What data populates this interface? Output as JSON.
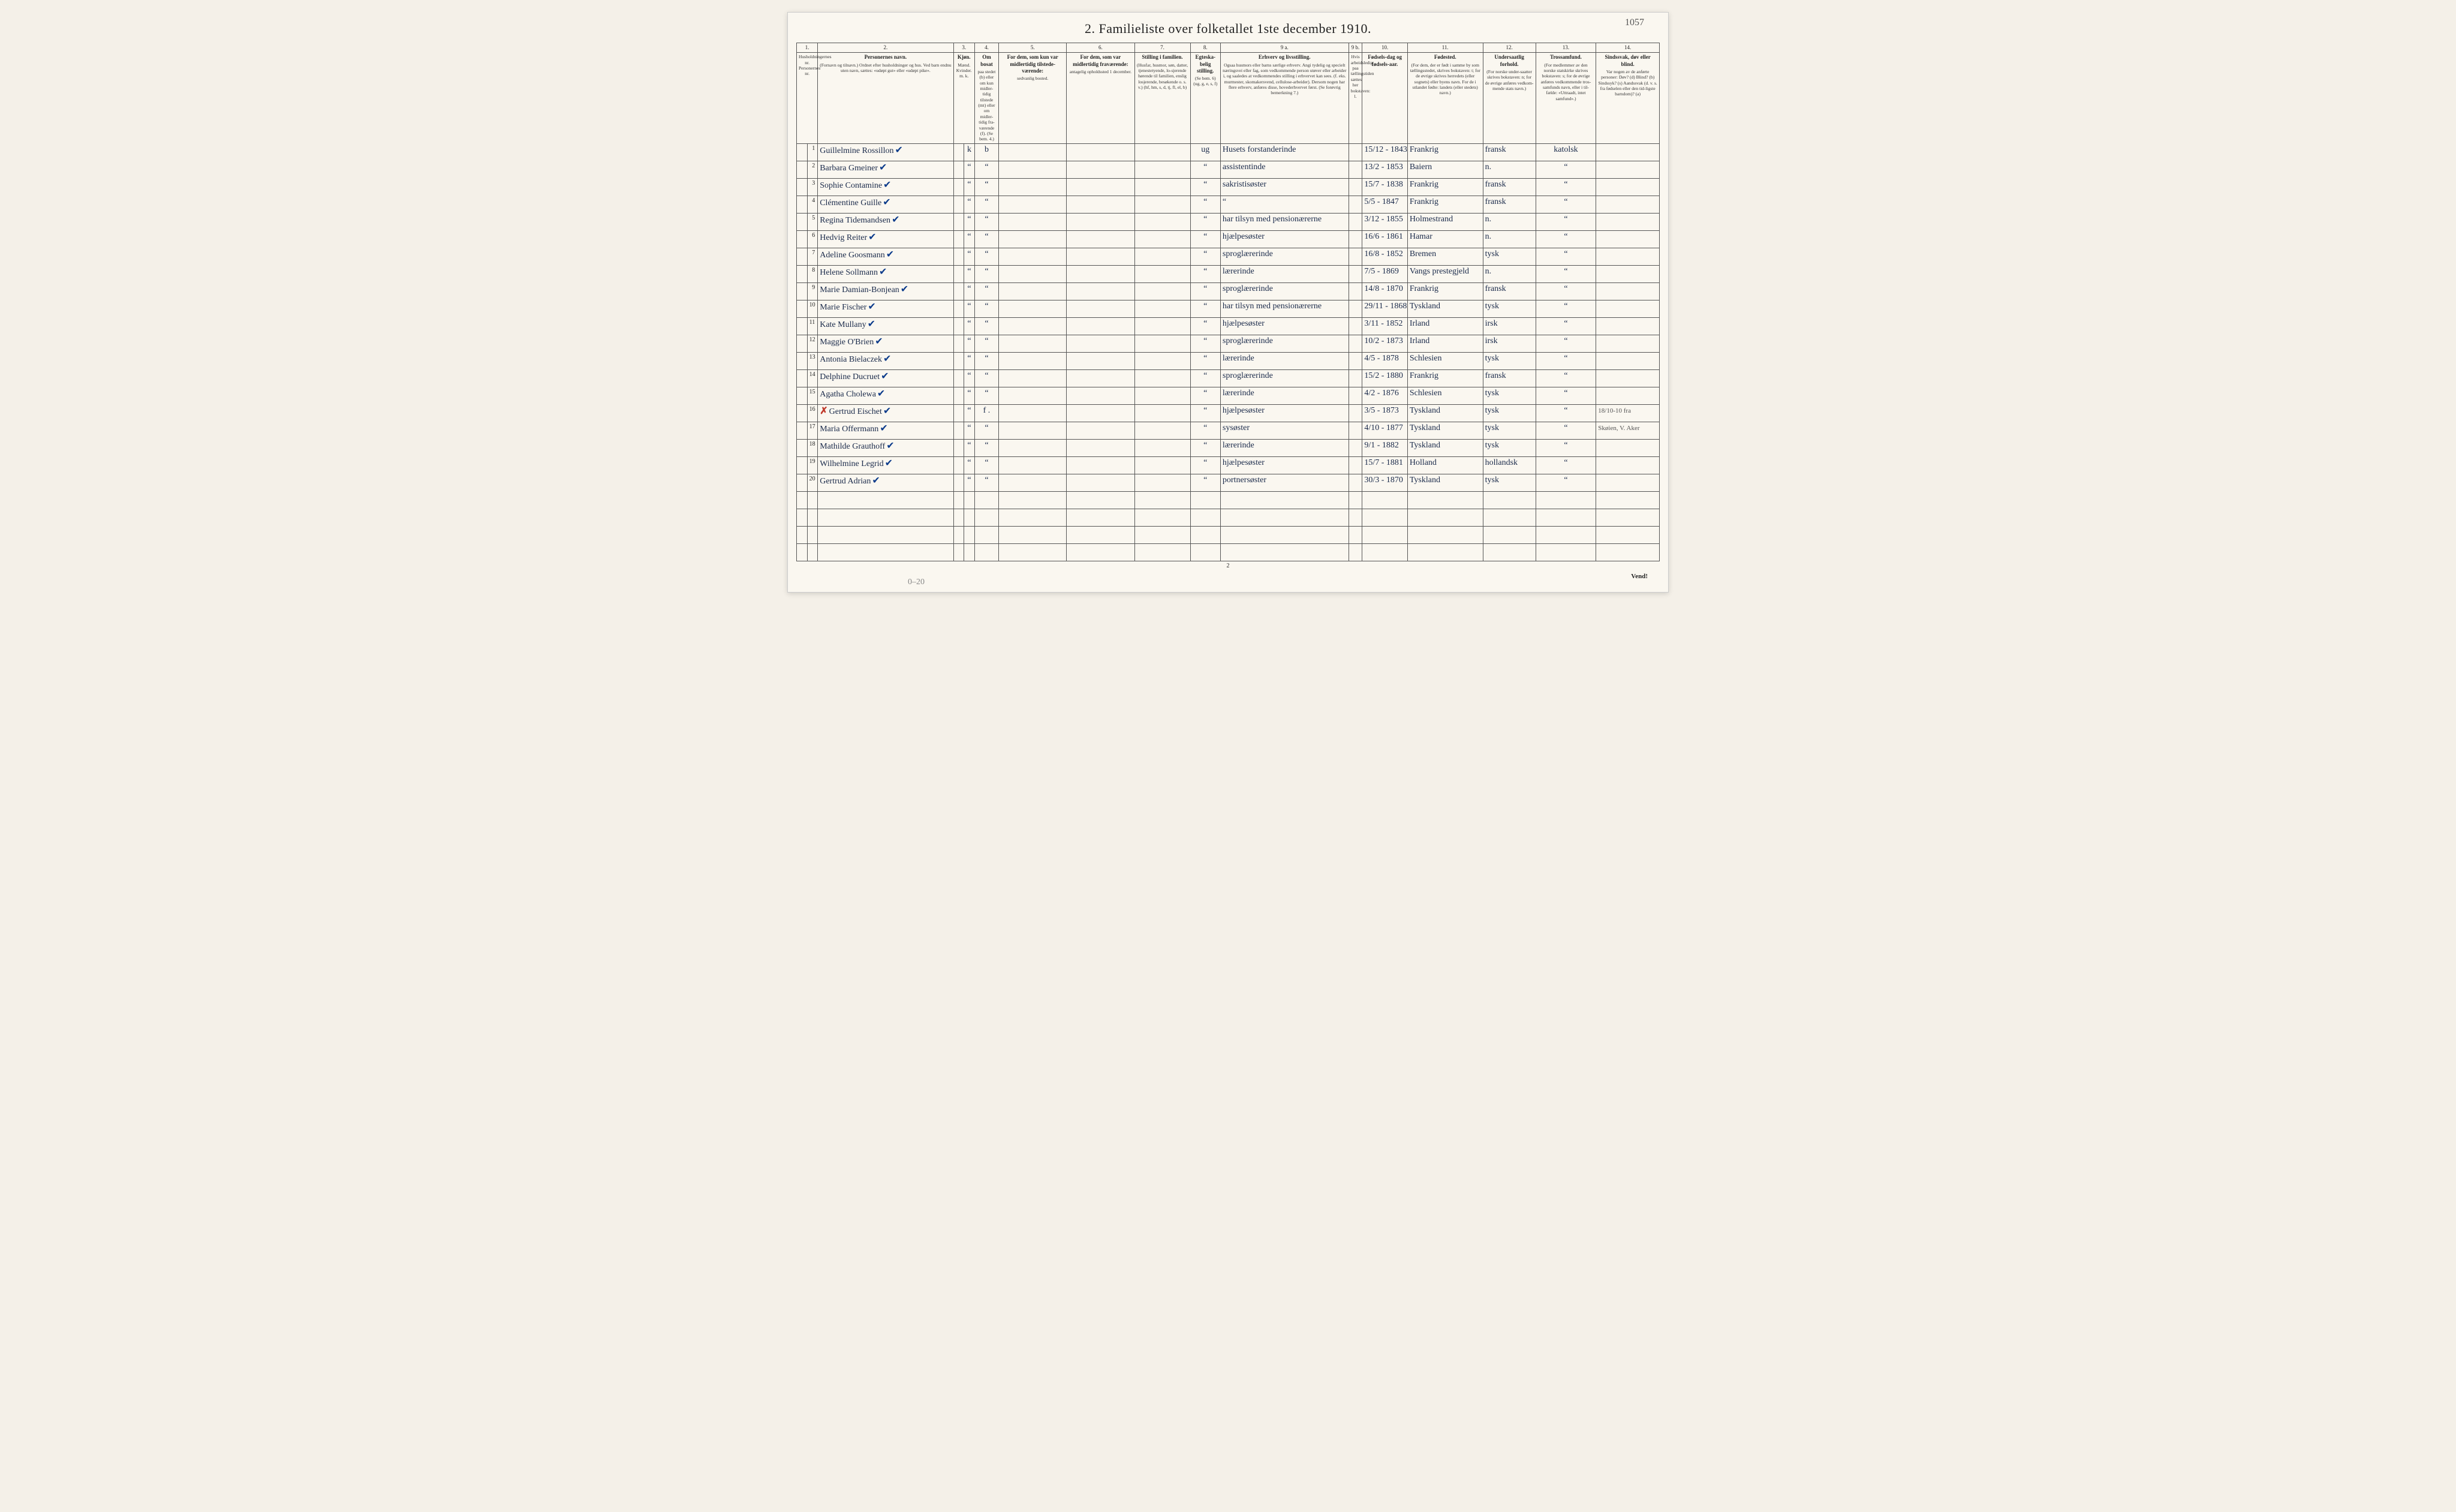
{
  "page_number_handwritten": "1057",
  "title": "2.  Familieliste over folketallet 1ste december 1910.",
  "footer_turn": "Vend!",
  "footer_page": "2",
  "pencil_note": "0–20",
  "columns": {
    "c1": {
      "num": "1.",
      "sub": "Husholdningernes nr.\nPersonernes nr."
    },
    "c2": {
      "num": "2.",
      "title": "Personernes navn.",
      "sub": "(Fornavn og tilnavn.)\nOrdnet efter husholdninger og hus.\nVed barn endnu uten navn, sættes: «udøpt gut» eller «udøpt pike»."
    },
    "c3": {
      "num": "3.",
      "title": "Kjøn.",
      "sub_m": "Mænd.",
      "sub_k": "Kvinder.",
      "mk": "m.  k."
    },
    "c4": {
      "num": "4.",
      "title": "Om bosat",
      "sub": "paa stedet (b) eller om kun midler-tidig tilstede (mt) eller om midler-tidig fra-værende (f). (Se bem. 4.)"
    },
    "c5": {
      "num": "5.",
      "title": "For dem, som kun var midlertidig tilstede-værende:",
      "sub": "sedvanlig bosted."
    },
    "c6": {
      "num": "6.",
      "title": "For dem, som var midlertidig fraværende:",
      "sub": "antagelig opholdssted 1 december."
    },
    "c7": {
      "num": "7.",
      "title": "Stilling i familien.",
      "sub": "(Husfar, husmor, søn, datter, tjenestetyende, lo-sjerende hørende til familien, enslig losjerende, besøkende o. s. v.)\n(hf, hm, s, d, tj, fl, el, b)"
    },
    "c8": {
      "num": "8.",
      "title": "Egteska-belig stilling.",
      "sub": "(Se bem. 6)\n(ug, g, e, s, f)"
    },
    "c9a": {
      "num": "9 a.",
      "title": "Erhverv og livsstilling.",
      "sub": "Ogsaa husmors eller barns særlige erhverv. Angi tydelig og specielt næringsvei eller fag, som vedkommende person utøver eller arbeider i, og saaledes at vedkommendes stilling i erhvervet kan sees. (f. eks. murmester, skomakersvend, cellulose-arbeider). Dersom nogen har flere erhverv, anføres disse, hovederhvervet først.\n(Se forøvrig bemerkning 7.)"
    },
    "c9b": {
      "num": "9 b.",
      "sub": "Hvis arbeidsledig paa tællingstiden sættes her bokstaven: l."
    },
    "c10": {
      "num": "10.",
      "title": "Fødsels-dag og fødsels-aar."
    },
    "c11": {
      "num": "11.",
      "title": "Fødested.",
      "sub": "(For dem, der er født i samme by som tællingsstedet, skrives bokstaven: t; for de øvrige skrives herredets (eller sognets) eller byens navn. For de i utlandet fødte: landets (eller stedets) navn.)"
    },
    "c12": {
      "num": "12.",
      "title": "Undersaatlig forhold.",
      "sub": "(For norske under-saatter skrives bokstaven: n; for de øvrige anføres vedkom-mende stats navn.)"
    },
    "c13": {
      "num": "13.",
      "title": "Trossamfund.",
      "sub": "(For medlemmer av den norske statskirke skrives bokstaven: s; for de øvrige anføres vedkommende tros-samfunds navn, eller i til-fælde: «Uttraadt, intet samfund».)"
    },
    "c14": {
      "num": "14.",
      "title": "Sindssvak, døv eller blind.",
      "sub": "Var nogen av de anførte personer:\nDøv? (d)\nBlind? (b)\nSindssyk? (s)\nAandssvak (d. v. s. fra fødselen eller den tid-ligste barndom)? (a)"
    }
  },
  "rows": [
    {
      "n": "1",
      "name": "Guillelmine Rossillon",
      "tick": true,
      "mk": "k",
      "bosat": "b",
      "c8": "ug",
      "c9a": "Husets forstanderinde",
      "c10": "15/12 - 1843",
      "c11": "Frankrig",
      "c12": "fransk",
      "c13": "katolsk",
      "c14": ""
    },
    {
      "n": "2",
      "name": "Barbara Gmeiner",
      "tick": true,
      "mk": "“",
      "bosat": "“",
      "c8": "“",
      "c9a": "assistentinde",
      "c10": "13/2 - 1853",
      "c11": "Baiern",
      "c12": "n.",
      "c13": "“",
      "c14": ""
    },
    {
      "n": "3",
      "name": "Sophie Contamine",
      "tick": true,
      "mk": "“",
      "bosat": "“",
      "c8": "“",
      "c9a": "sakristisøster",
      "c10": "15/7 - 1838",
      "c11": "Frankrig",
      "c12": "fransk",
      "c13": "“",
      "c14": ""
    },
    {
      "n": "4",
      "name": "Clémentine Guille",
      "tick": true,
      "mk": "“",
      "bosat": "“",
      "c8": "“",
      "c9a": "“",
      "c10": "5/5 - 1847",
      "c11": "Frankrig",
      "c12": "fransk",
      "c13": "“",
      "c14": ""
    },
    {
      "n": "5",
      "name": "Regina Tidemandsen",
      "tick": true,
      "mk": "“",
      "bosat": "“",
      "c8": "“",
      "c9a": "har tilsyn med pensionærerne",
      "c10": "3/12 - 1855",
      "c11": "Holmestrand",
      "c12": "n.",
      "c13": "“",
      "c14": ""
    },
    {
      "n": "6",
      "name": "Hedvig Reiter",
      "tick": true,
      "mk": "“",
      "bosat": "“",
      "c8": "“",
      "c9a": "hjælpesøster",
      "c10": "16/6 - 1861",
      "c11": "Hamar",
      "c12": "n.",
      "c13": "“",
      "c14": ""
    },
    {
      "n": "7",
      "name": "Adeline Goosmann",
      "tick": true,
      "mk": "“",
      "bosat": "“",
      "c8": "“",
      "c9a": "sproglærerinde",
      "c10": "16/8 - 1852",
      "c11": "Bremen",
      "c12": "tysk",
      "c13": "“",
      "c14": ""
    },
    {
      "n": "8",
      "name": "Helene Sollmann",
      "tick": true,
      "mk": "“",
      "bosat": "“",
      "c8": "“",
      "c9a": "lærerinde",
      "c10": "7/5 - 1869",
      "c11": "Vangs prestegjeld",
      "c12": "n.",
      "c13": "“",
      "c14": ""
    },
    {
      "n": "9",
      "name": "Marie Damian-Bonjean",
      "tick": true,
      "mk": "“",
      "bosat": "“",
      "c8": "“",
      "c9a": "sproglærerinde",
      "c10": "14/8 - 1870",
      "c11": "Frankrig",
      "c12": "fransk",
      "c13": "“",
      "c14": ""
    },
    {
      "n": "10",
      "name": "Marie Fischer",
      "tick": true,
      "mk": "“",
      "bosat": "“",
      "c8": "“",
      "c9a": "har tilsyn med pensionærerne",
      "c10": "29/11 - 1868",
      "c11": "Tyskland",
      "c12": "tysk",
      "c13": "“",
      "c14": ""
    },
    {
      "n": "11",
      "name": "Kate Mullany",
      "tick": true,
      "mk": "“",
      "bosat": "“",
      "c8": "“",
      "c9a": "hjælpesøster",
      "c10": "3/11 - 1852",
      "c11": "Irland",
      "c12": "irsk",
      "c13": "“",
      "c14": ""
    },
    {
      "n": "12",
      "name": "Maggie O'Brien",
      "tick": true,
      "mk": "“",
      "bosat": "“",
      "c8": "“",
      "c9a": "sproglærerinde",
      "c10": "10/2 - 1873",
      "c11": "Irland",
      "c12": "irsk",
      "c13": "“",
      "c14": ""
    },
    {
      "n": "13",
      "name": "Antonia Bielaczek",
      "tick": true,
      "mk": "“",
      "bosat": "“",
      "c8": "“",
      "c9a": "lærerinde",
      "c10": "4/5 - 1878",
      "c11": "Schlesien",
      "c12": "tysk",
      "c13": "“",
      "c14": ""
    },
    {
      "n": "14",
      "name": "Delphine Ducruet",
      "tick": true,
      "mk": "“",
      "bosat": "“",
      "c8": "“",
      "c9a": "sproglærerinde",
      "c10": "15/2 - 1880",
      "c11": "Frankrig",
      "c12": "fransk",
      "c13": "“",
      "c14": ""
    },
    {
      "n": "15",
      "name": "Agatha Cholewa",
      "tick": true,
      "mk": "“",
      "bosat": "“",
      "c8": "“",
      "c9a": "lærerinde",
      "c10": "4/2 - 1876",
      "c11": "Schlesien",
      "c12": "tysk",
      "c13": "“",
      "c14": ""
    },
    {
      "n": "16",
      "name": "Gertrud Eischet",
      "tick": true,
      "redx": true,
      "mk": "“",
      "bosat": "f .",
      "c8": "“",
      "c9a": "hjælpesøster",
      "c10": "3/5 - 1873",
      "c11": "Tyskland",
      "c12": "tysk",
      "c13": "“",
      "c14": "18/10-10 fra"
    },
    {
      "n": "17",
      "name": "Maria Offermann",
      "tick": true,
      "mk": "“",
      "bosat": "“",
      "c8": "“",
      "c9a": "sysøster",
      "c10": "4/10 - 1877",
      "c11": "Tyskland",
      "c12": "tysk",
      "c13": "“",
      "c14": "Skøien, V. Aker"
    },
    {
      "n": "18",
      "name": "Mathilde Grauthoff",
      "tick": true,
      "mk": "“",
      "bosat": "“",
      "c8": "“",
      "c9a": "lærerinde",
      "c10": "9/1 - 1882",
      "c11": "Tyskland",
      "c12": "tysk",
      "c13": "“",
      "c14": ""
    },
    {
      "n": "19",
      "name": "Wilhelmine Legrid",
      "tick": true,
      "mk": "“",
      "bosat": "“",
      "c8": "“",
      "c9a": "hjælpesøster",
      "c10": "15/7 - 1881",
      "c11": "Holland",
      "c12": "hollandsk",
      "c13": "“",
      "c14": ""
    },
    {
      "n": "20",
      "name": "Gertrud Adrian",
      "tick": true,
      "mk": "“",
      "bosat": "“",
      "c8": "“",
      "c9a": "portnersøster",
      "c10": "30/3 - 1870",
      "c11": "Tyskland",
      "c12": "tysk",
      "c13": "“",
      "c14": ""
    }
  ],
  "colwidths": [
    "14px",
    "14px",
    "180px",
    "14px",
    "14px",
    "32px",
    "90px",
    "90px",
    "74px",
    "40px",
    "170px",
    "18px",
    "60px",
    "100px",
    "70px",
    "80px",
    "84px"
  ],
  "styling": {
    "paper_bg": "#faf7f0",
    "ink": "#1a2a4a",
    "rule": "#555",
    "title_fontsize": 22,
    "header_fontsize": 9,
    "body_fontsize": 14
  }
}
